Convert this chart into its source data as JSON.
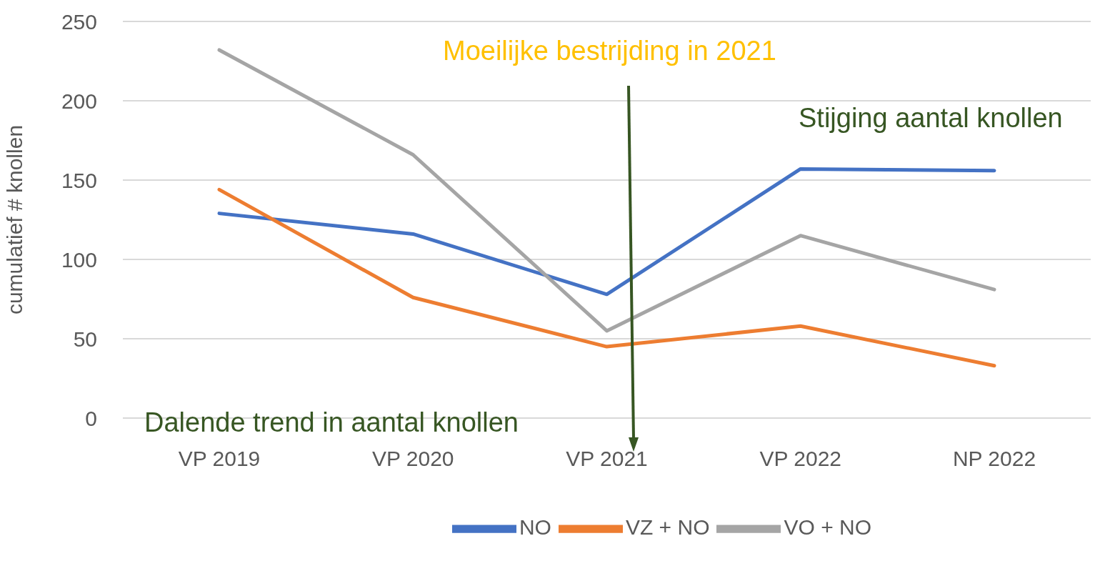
{
  "chart_data": {
    "type": "line",
    "ylabel": "cumulatief # knollen",
    "categories": [
      "VP 2019",
      "VP 2020",
      "VP 2021",
      "VP 2022",
      "NP 2022"
    ],
    "series": [
      {
        "name": "NO",
        "color": "#4472c4",
        "values": [
          129,
          116,
          78,
          157,
          156
        ]
      },
      {
        "name": "VZ + NO",
        "color": "#ed7d31",
        "values": [
          144,
          76,
          45,
          58,
          33
        ]
      },
      {
        "name": "VO + NO",
        "color": "#a5a5a5",
        "values": [
          232,
          166,
          55,
          115,
          81
        ]
      }
    ],
    "ylim": [
      0,
      250
    ],
    "yticks": [
      0,
      50,
      100,
      150,
      200,
      250
    ],
    "grid": "y",
    "legend": "bottom",
    "marker": "none",
    "line_style": "solid",
    "annotations": [
      "Moeilijke bestrijding in 2021",
      "Stijging aantal knollen",
      "Dalende trend in aantal knollen"
    ]
  }
}
